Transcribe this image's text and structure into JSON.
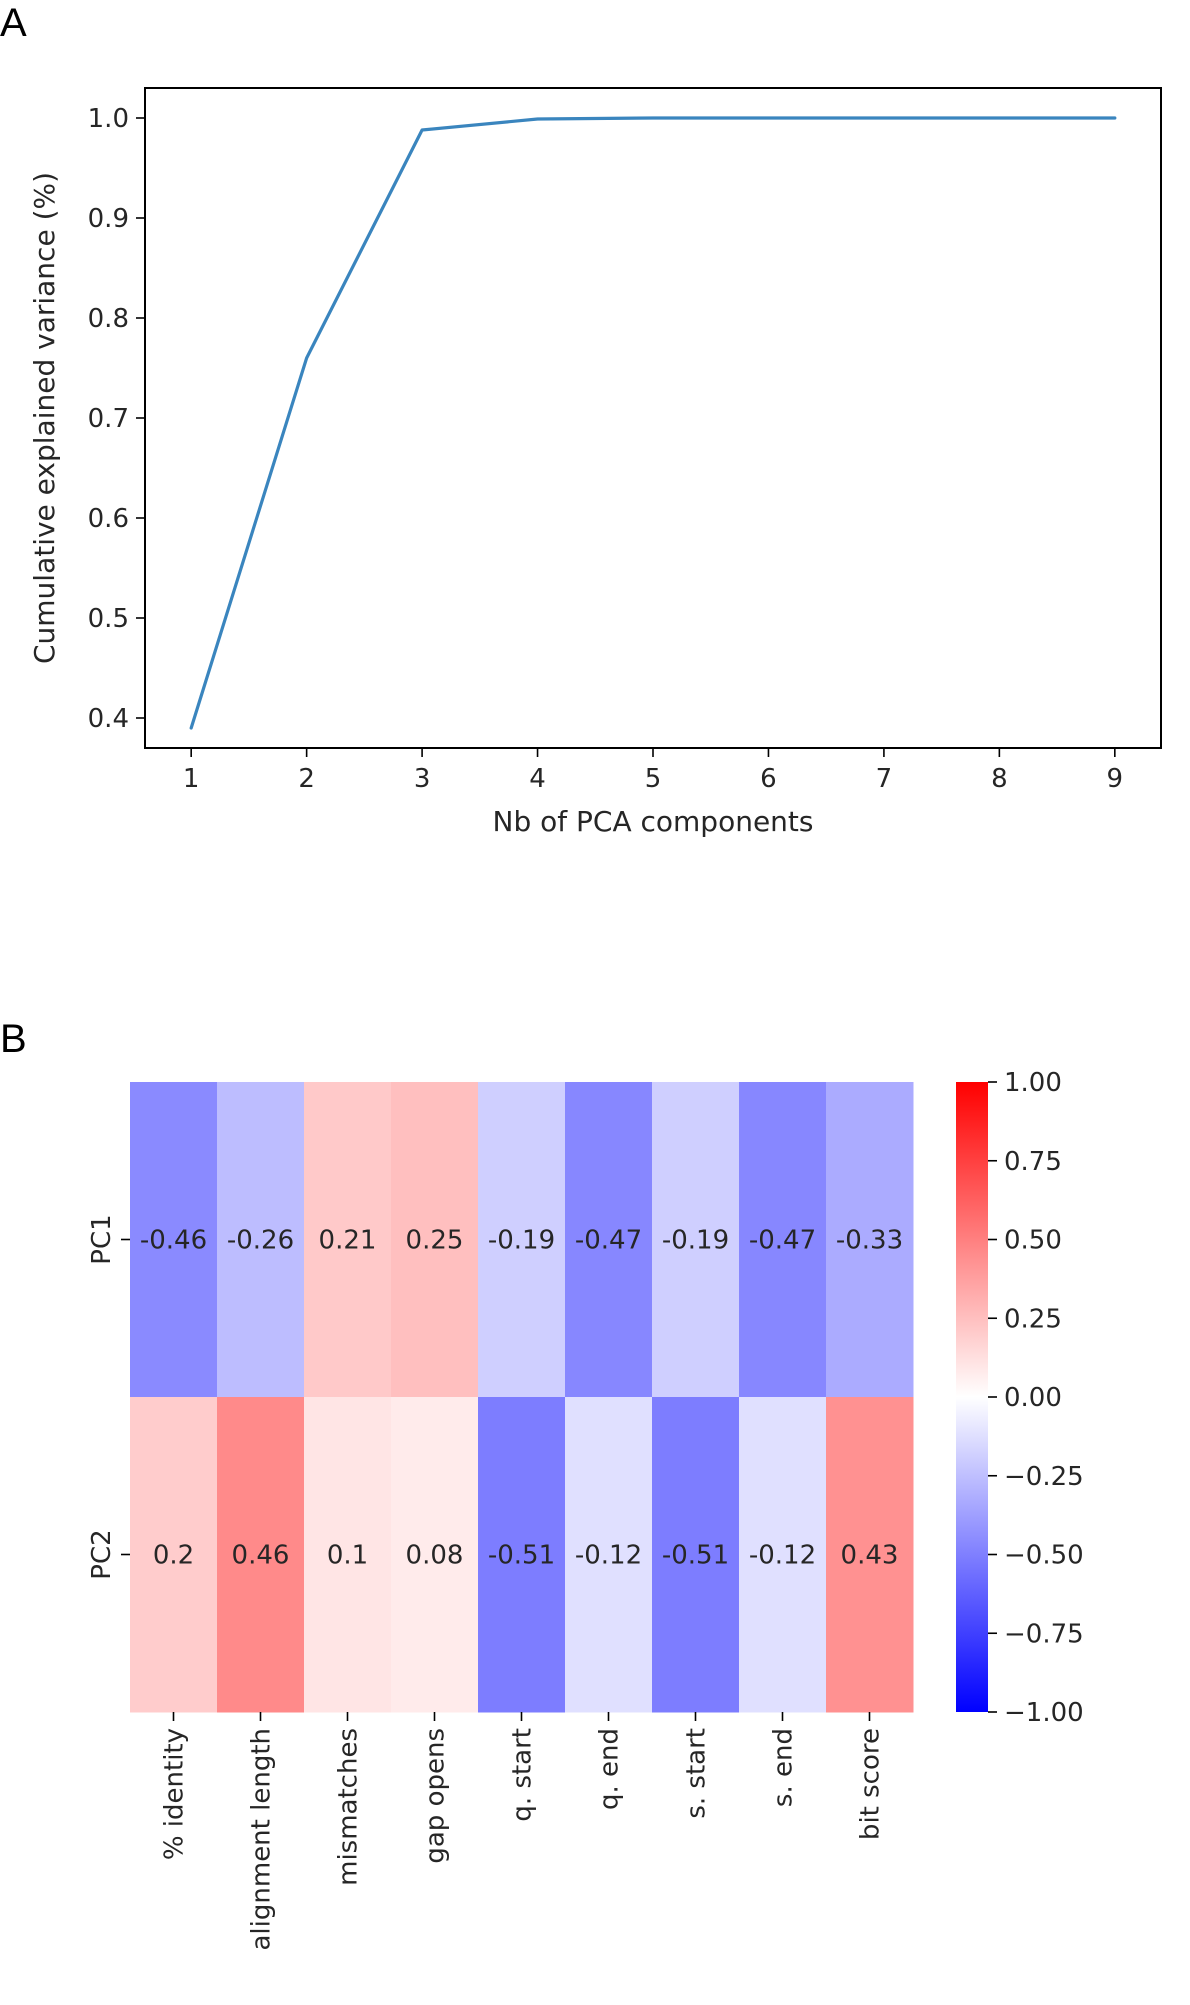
{
  "chart_data": [
    {
      "panel_label": "A",
      "type": "line",
      "title": "",
      "xlabel": "Nb of PCA components",
      "ylabel": "Cumulative explained variance (%)",
      "x": [
        1,
        2,
        3,
        4,
        5,
        6,
        7,
        8,
        9
      ],
      "x_ticks": [
        "1",
        "2",
        "3",
        "4",
        "5",
        "6",
        "7",
        "8",
        "9"
      ],
      "y_ticks": [
        "0.4",
        "0.5",
        "0.6",
        "0.7",
        "0.8",
        "0.9",
        "1.0"
      ],
      "series": [
        {
          "values": [
            0.39,
            0.76,
            0.988,
            0.999,
            1.0,
            1.0,
            1.0,
            1.0,
            1.0
          ],
          "color": "#3a85be"
        }
      ],
      "xlim": [
        0.6,
        9.4
      ],
      "ylim": [
        0.37,
        1.03
      ],
      "grid": false,
      "legend": "none"
    },
    {
      "panel_label": "B",
      "type": "heatmap",
      "title": "",
      "columns": [
        "% identity",
        "alignment length",
        "mismatches",
        "gap opens",
        "q. start",
        "q. end",
        "s. start",
        "s. end",
        "bit score"
      ],
      "rows": [
        "PC1",
        "PC2"
      ],
      "values": [
        [
          -0.46,
          -0.26,
          0.21,
          0.25,
          -0.19,
          -0.47,
          -0.19,
          -0.47,
          -0.33
        ],
        [
          0.2,
          0.46,
          0.1,
          0.08,
          -0.51,
          -0.12,
          -0.51,
          -0.12,
          0.43
        ]
      ],
      "cell_labels": [
        [
          "-0.46",
          "-0.26",
          "0.21",
          "0.25",
          "-0.19",
          "-0.47",
          "-0.19",
          "-0.47",
          "-0.33"
        ],
        [
          "0.2",
          "0.46",
          "0.1",
          "0.08",
          "-0.51",
          "-0.12",
          "-0.51",
          "-0.12",
          "0.43"
        ]
      ],
      "colormap": "bwr",
      "vmin": -1.0,
      "vmax": 1.0,
      "colorbar_ticks": [
        "1.00",
        "0.75",
        "0.50",
        "0.25",
        "0.00",
        "−0.25",
        "−0.50",
        "−0.75",
        "−1.00"
      ],
      "colorbar_values": [
        1.0,
        0.75,
        0.5,
        0.25,
        0.0,
        -0.25,
        -0.5,
        -0.75,
        -1.0
      ],
      "colors": {
        "negative": "#0000ff",
        "neutral": "#ffffff",
        "positive": "#ff0000"
      }
    }
  ]
}
